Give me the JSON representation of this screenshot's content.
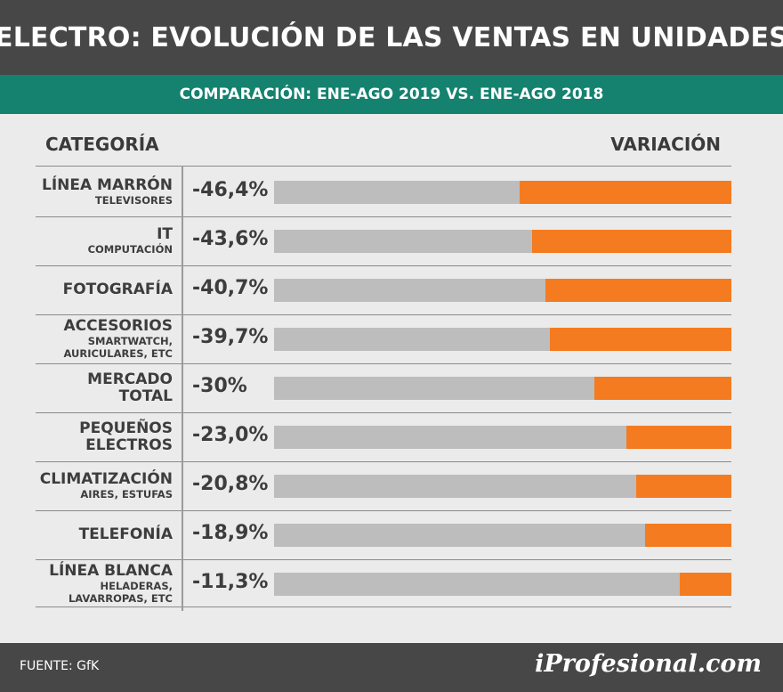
{
  "header": {
    "title": "ELECTRO: EVOLUCIÓN DE LAS VENTAS EN UNIDADES"
  },
  "subheader": {
    "text": "COMPARACIÓN: ENE-AGO 2019 VS. ENE-AGO 2018"
  },
  "columns": {
    "left": "CATEGORÍA",
    "right": "VARIACIÓN"
  },
  "footer": {
    "source": "FUENTE: GfK",
    "brand": "iProfesional.com"
  },
  "colors": {
    "header_bg": "#474747",
    "subheader_bg": "#14826f",
    "bar_track": "#bdbdbd",
    "bar_fill": "#f47b20",
    "page_bg": "#ebebeb"
  },
  "chart_data": {
    "type": "bar",
    "orientation": "horizontal",
    "title": "ELECTRO: EVOLUCIÓN DE LAS VENTAS EN UNIDADES",
    "subtitle": "COMPARACIÓN: ENE-AGO 2019 VS. ENE-AGO 2018",
    "xlim": [
      -100,
      0
    ],
    "grid": false,
    "rows": [
      {
        "category": "LÍNEA MARRÓN",
        "sub": "TELEVISORES",
        "label": "-46,4%",
        "value": -46.4
      },
      {
        "category": "IT",
        "sub": "COMPUTACIÓN",
        "label": "-43,6%",
        "value": -43.6
      },
      {
        "category": "FOTOGRAFÍA",
        "sub": "",
        "label": "-40,7%",
        "value": -40.7
      },
      {
        "category": "ACCESORIOS",
        "sub": "SMARTWATCH,\nAURICULARES, ETC",
        "label": "-39,7%",
        "value": -39.7
      },
      {
        "category": "MERCADO\nTOTAL",
        "sub": "",
        "label": "-30%",
        "value": -30
      },
      {
        "category": "PEQUEÑOS\nELECTROS",
        "sub": "",
        "label": "-23,0%",
        "value": -23.0
      },
      {
        "category": "CLIMATIZACIÓN",
        "sub": "AIRES, ESTUFAS",
        "label": "-20,8%",
        "value": -20.8
      },
      {
        "category": "TELEFONÍA",
        "sub": "",
        "label": "-18,9%",
        "value": -18.9
      },
      {
        "category": "LÍNEA BLANCA",
        "sub": "HELADERAS,\nLAVARROPAS, ETC",
        "label": "-11,3%",
        "value": -11.3
      }
    ]
  }
}
